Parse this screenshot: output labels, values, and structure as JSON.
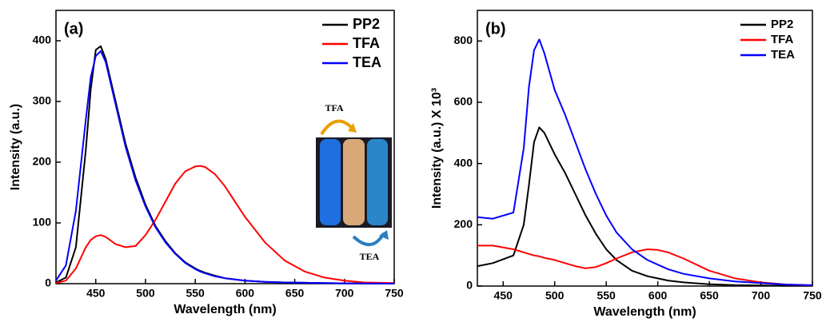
{
  "chart_data": [
    {
      "type": "line",
      "title": "(a)",
      "x_label": "Wavelength (nm)",
      "y_label": "Intensity (a.u.)",
      "x": [
        410,
        420,
        430,
        440,
        445,
        450,
        455,
        460,
        470,
        480,
        490,
        500,
        510,
        520,
        530,
        540,
        550,
        555,
        560,
        570,
        580,
        590,
        600,
        620,
        640,
        660,
        680,
        700,
        720,
        750
      ],
      "series": [
        {
          "name": "PP2",
          "color": "#000000",
          "values": [
            2,
            10,
            60,
            220,
            320,
            385,
            391,
            370,
            300,
            230,
            175,
            130,
            95,
            70,
            50,
            35,
            25,
            21,
            18,
            13,
            9,
            7,
            5,
            3,
            2,
            1.5,
            1,
            0.5,
            0.3,
            0
          ]
        },
        {
          "name": "TFA",
          "color": "#ff0000",
          "values": [
            1,
            5,
            25,
            60,
            72,
            78,
            80,
            77,
            65,
            60,
            62,
            80,
            105,
            135,
            165,
            185,
            193,
            194,
            192,
            180,
            160,
            135,
            110,
            68,
            38,
            20,
            10,
            5,
            2,
            1
          ]
        },
        {
          "name": "TEA",
          "color": "#0000ff",
          "values": [
            5,
            30,
            120,
            270,
            340,
            375,
            383,
            365,
            295,
            225,
            170,
            127,
            93,
            68,
            49,
            34,
            24,
            20,
            17,
            12,
            9,
            7,
            5,
            3,
            2,
            1.5,
            1,
            0.5,
            0.3,
            0
          ]
        }
      ],
      "xlim": [
        410,
        750
      ],
      "ylim": [
        0,
        450
      ],
      "xticks": [
        450,
        500,
        550,
        600,
        650,
        700,
        750
      ],
      "yticks": [
        0,
        100,
        200,
        300,
        400
      ],
      "legend": "top-right",
      "annotations": [
        "TFA",
        "TEA"
      ]
    },
    {
      "type": "line",
      "title": "(b)",
      "x_label": "Wavelength (nm)",
      "y_label": "Intensity (a.u.) X 10³",
      "x": [
        425,
        440,
        460,
        470,
        475,
        480,
        485,
        490,
        500,
        510,
        520,
        530,
        540,
        550,
        560,
        575,
        590,
        600,
        610,
        625,
        650,
        675,
        700,
        725,
        750
      ],
      "series": [
        {
          "name": "PP2",
          "color": "#000000",
          "values": [
            65,
            75,
            100,
            200,
            330,
            470,
            518,
            500,
            430,
            370,
            300,
            230,
            170,
            120,
            85,
            50,
            32,
            25,
            18,
            12,
            6,
            3,
            2,
            1,
            1
          ]
        },
        {
          "name": "TFA",
          "color": "#ff0000",
          "values": [
            132,
            132,
            120,
            110,
            105,
            100,
            97,
            92,
            85,
            75,
            65,
            58,
            62,
            75,
            90,
            110,
            120,
            118,
            110,
            90,
            50,
            25,
            12,
            5,
            2
          ]
        },
        {
          "name": "TEA",
          "color": "#0000ff",
          "values": [
            225,
            220,
            240,
            450,
            650,
            770,
            805,
            760,
            640,
            560,
            470,
            380,
            300,
            230,
            175,
            120,
            85,
            70,
            55,
            40,
            25,
            15,
            10,
            5,
            3
          ]
        }
      ],
      "xlim": [
        425,
        750
      ],
      "ylim": [
        0,
        900
      ],
      "xticks": [
        450,
        500,
        550,
        600,
        650,
        700,
        750
      ],
      "yticks": [
        0,
        200,
        400,
        600,
        800
      ],
      "legend": "top-right"
    }
  ]
}
